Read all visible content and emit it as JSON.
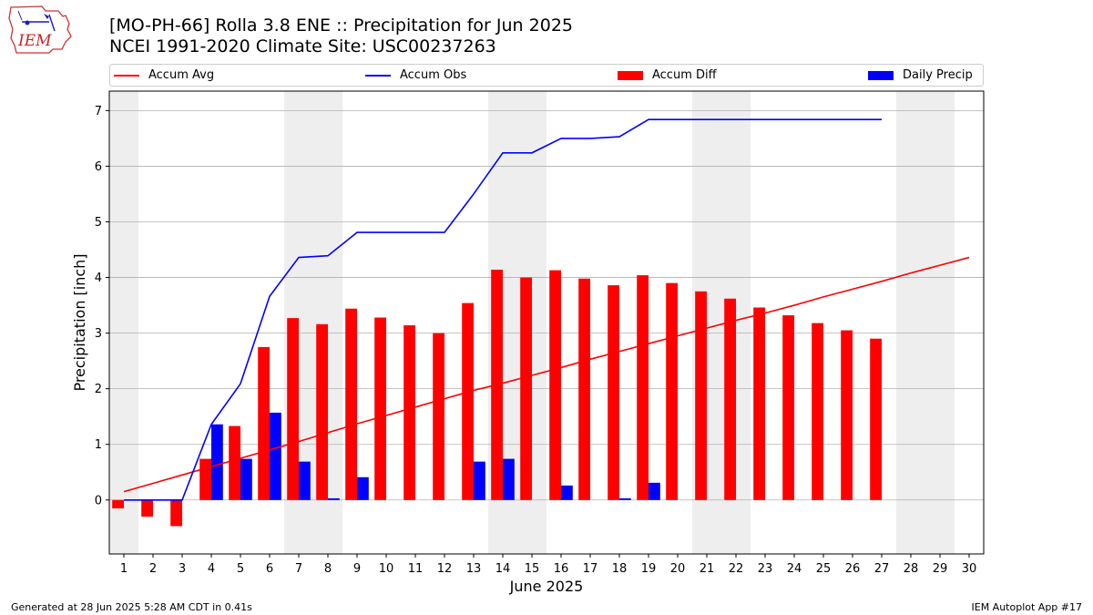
{
  "header": {
    "logo_text": "IEM",
    "title_line1": "[MO-PH-66] Rolla 3.8 ENE :: Precipitation for Jun 2025",
    "title_line2": "NCEI 1991-2020 Climate Site: USC00237263"
  },
  "legend": {
    "placement": "top",
    "items": [
      {
        "label": "Accum Avg",
        "kind": "line",
        "color": "#ff0000"
      },
      {
        "label": "Accum Obs",
        "kind": "line",
        "color": "#0000ff"
      },
      {
        "label": "Accum Diff",
        "kind": "box",
        "color": "#ff0000"
      },
      {
        "label": "Daily Precip",
        "kind": "box",
        "color": "#0000ff"
      }
    ]
  },
  "footer": {
    "left": "Generated at 28 Jun 2025 5:28 AM CDT in 0.41s",
    "right": "IEM Autoplot App #17"
  },
  "chart_data": {
    "type": "bar",
    "xlabel": "June 2025",
    "ylabel": "Precipitation [inch]",
    "xlim": [
      0.5,
      30.5
    ],
    "ylim": [
      -0.97,
      7.35
    ],
    "yticks": [
      0,
      1,
      2,
      3,
      4,
      5,
      6,
      7
    ],
    "grid": "y",
    "weekend_shading": [
      [
        0.5,
        1.5
      ],
      [
        6.5,
        8.5
      ],
      [
        13.5,
        15.5
      ],
      [
        20.5,
        22.5
      ],
      [
        27.5,
        29.5
      ]
    ],
    "days": [
      1,
      2,
      3,
      4,
      5,
      6,
      7,
      8,
      9,
      10,
      11,
      12,
      13,
      14,
      15,
      16,
      17,
      18,
      19,
      20,
      21,
      22,
      23,
      24,
      25,
      26,
      27,
      28,
      29,
      30
    ],
    "series": [
      {
        "name": "Accum Avg",
        "type": "line",
        "color": "#ff0000",
        "values": [
          0.15,
          0.3,
          0.45,
          0.6,
          0.75,
          0.9,
          1.05,
          1.21,
          1.37,
          1.52,
          1.67,
          1.82,
          1.97,
          2.1,
          2.24,
          2.38,
          2.53,
          2.67,
          2.81,
          2.95,
          3.09,
          3.23,
          3.36,
          3.5,
          3.65,
          3.79,
          3.93,
          4.08,
          4.22,
          4.36
        ]
      },
      {
        "name": "Accum Obs",
        "type": "line",
        "color": "#0000ff",
        "values": [
          0.0,
          0.0,
          0.0,
          1.36,
          2.09,
          3.66,
          4.36,
          4.39,
          4.81,
          4.81,
          4.81,
          4.81,
          5.5,
          6.24,
          6.24,
          6.5,
          6.5,
          6.53,
          6.84,
          6.84,
          6.84,
          6.84,
          6.84,
          6.84,
          6.84,
          6.84,
          6.84
        ]
      },
      {
        "name": "Accum Diff",
        "type": "bar",
        "color": "#ff0000",
        "values": [
          -0.15,
          -0.3,
          -0.47,
          0.74,
          1.33,
          2.75,
          3.27,
          3.16,
          3.44,
          3.28,
          3.14,
          3.0,
          3.54,
          4.14,
          4.0,
          4.13,
          3.98,
          3.86,
          4.04,
          3.9,
          3.75,
          3.62,
          3.46,
          3.32,
          3.18,
          3.05,
          2.9
        ]
      },
      {
        "name": "Daily Precip",
        "type": "bar",
        "color": "#0000ff",
        "values": [
          0.0,
          0.0,
          0.0,
          1.36,
          0.74,
          1.57,
          0.69,
          0.03,
          0.41,
          0.0,
          0.0,
          0.0,
          0.69,
          0.74,
          0.0,
          0.26,
          0.0,
          0.03,
          0.31,
          0.0,
          0.0,
          0.0,
          0.0,
          0.0,
          0.0,
          0.0,
          0.0
        ]
      }
    ]
  }
}
